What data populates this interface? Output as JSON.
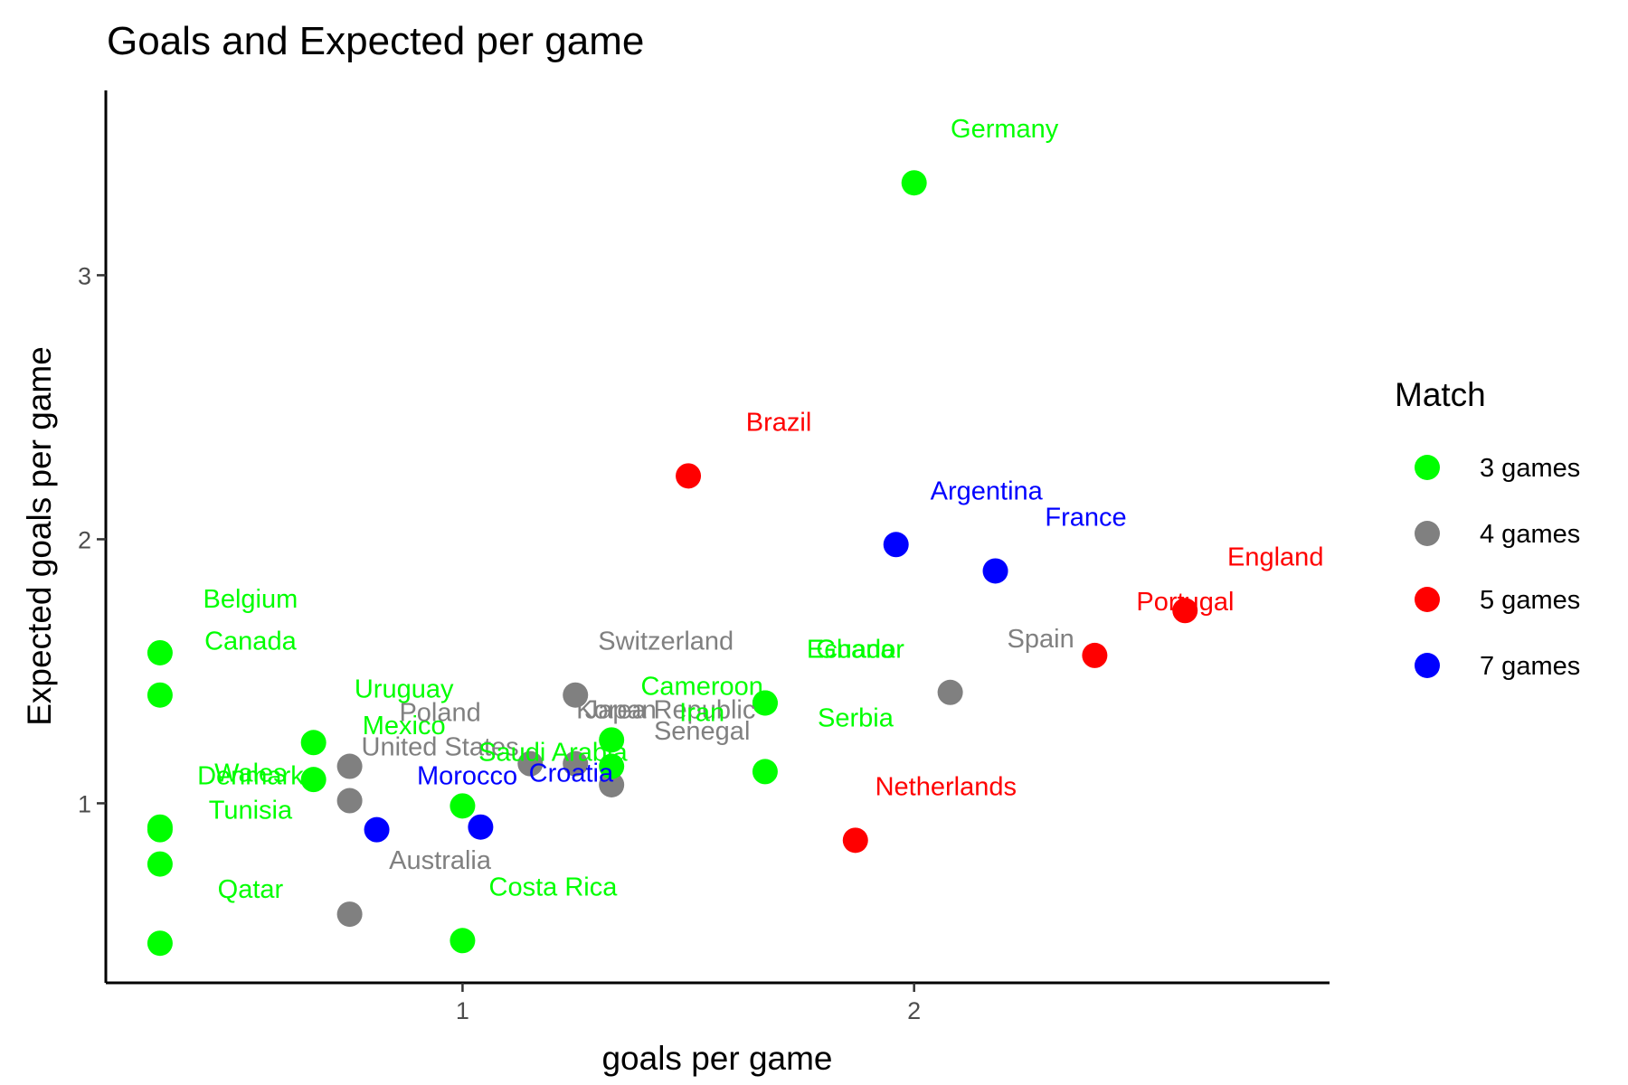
{
  "chart_data": {
    "type": "scatter",
    "title": "Goals and Expected per game",
    "xlabel": "goals per game",
    "ylabel": "Expected goals per game",
    "xlim": [
      0.21,
      2.92
    ],
    "ylim": [
      0.32,
      3.7
    ],
    "x_ticks": [
      1,
      2
    ],
    "y_ticks": [
      1,
      2,
      3
    ],
    "x_tick_labels": [
      "1",
      "2"
    ],
    "y_tick_labels": [
      "1",
      "2",
      "3"
    ],
    "grid": false,
    "legend": {
      "title": "Match",
      "position": "right",
      "entries": [
        {
          "label": "3 games",
          "color": "#00ff00"
        },
        {
          "label": "4 games",
          "color": "#808080"
        },
        {
          "label": "5 games",
          "color": "#ff0000"
        },
        {
          "label": "7 games",
          "color": "#0000ff"
        }
      ]
    },
    "points": [
      {
        "label": "Germany",
        "x": 2.0,
        "y": 3.35,
        "group": "3 games"
      },
      {
        "label": "Brazil",
        "x": 1.5,
        "y": 2.24,
        "group": "5 games"
      },
      {
        "label": "Argentina",
        "x": 1.96,
        "y": 1.98,
        "group": "7 games"
      },
      {
        "label": "France",
        "x": 2.18,
        "y": 1.88,
        "group": "7 games"
      },
      {
        "label": "England",
        "x": 2.6,
        "y": 1.73,
        "group": "5 games"
      },
      {
        "label": "Portugal",
        "x": 2.4,
        "y": 1.56,
        "group": "5 games"
      },
      {
        "label": "Spain",
        "x": 2.08,
        "y": 1.42,
        "group": "4 games"
      },
      {
        "label": "Netherlands",
        "x": 1.87,
        "y": 0.86,
        "group": "5 games"
      },
      {
        "label": "Belgium",
        "x": 0.33,
        "y": 1.57,
        "group": "3 games"
      },
      {
        "label": "Canada",
        "x": 0.33,
        "y": 1.41,
        "group": "3 games"
      },
      {
        "label": "Uruguay",
        "x": 0.67,
        "y": 1.23,
        "group": "3 games"
      },
      {
        "label": "Mexico",
        "x": 0.67,
        "y": 1.09,
        "group": "3 games"
      },
      {
        "label": "Wales",
        "x": 0.33,
        "y": 0.91,
        "group": "3 games"
      },
      {
        "label": "Denmark",
        "x": 0.33,
        "y": 0.9,
        "group": "3 games"
      },
      {
        "label": "Tunisia",
        "x": 0.33,
        "y": 0.77,
        "group": "3 games"
      },
      {
        "label": "Qatar",
        "x": 0.33,
        "y": 0.47,
        "group": "3 games"
      },
      {
        "label": "Poland",
        "x": 0.75,
        "y": 1.14,
        "group": "4 games"
      },
      {
        "label": "United States",
        "x": 0.75,
        "y": 1.01,
        "group": "4 games"
      },
      {
        "label": "Australia",
        "x": 0.75,
        "y": 0.58,
        "group": "4 games"
      },
      {
        "label": "Morocco",
        "x": 0.81,
        "y": 0.9,
        "group": "7 games"
      },
      {
        "label": "Croatia",
        "x": 1.04,
        "y": 0.91,
        "group": "7 games"
      },
      {
        "label": "Costa Rica",
        "x": 1.0,
        "y": 0.48,
        "group": "3 games"
      },
      {
        "label": "Saudi Arabia",
        "x": 1.0,
        "y": 0.99,
        "group": "3 games"
      },
      {
        "label": "Switzerland",
        "x": 1.25,
        "y": 1.41,
        "group": "4 games"
      },
      {
        "label": "Korea Republic",
        "x": 1.25,
        "y": 1.15,
        "group": "4 games"
      },
      {
        "label": "Japan",
        "x": 1.15,
        "y": 1.15,
        "group": "4 games"
      },
      {
        "label": "Senegal",
        "x": 1.33,
        "y": 1.07,
        "group": "4 games"
      },
      {
        "label": "Cameroon",
        "x": 1.33,
        "y": 1.24,
        "group": "3 games"
      },
      {
        "label": "Iran",
        "x": 1.33,
        "y": 1.14,
        "group": "3 games"
      },
      {
        "label": "Ecuador",
        "x": 1.67,
        "y": 1.38,
        "group": "3 games"
      },
      {
        "label": "Ghana",
        "x": 1.67,
        "y": 1.38,
        "group": "3 games"
      },
      {
        "label": "Serbia",
        "x": 1.67,
        "y": 1.12,
        "group": "3 games"
      }
    ]
  }
}
